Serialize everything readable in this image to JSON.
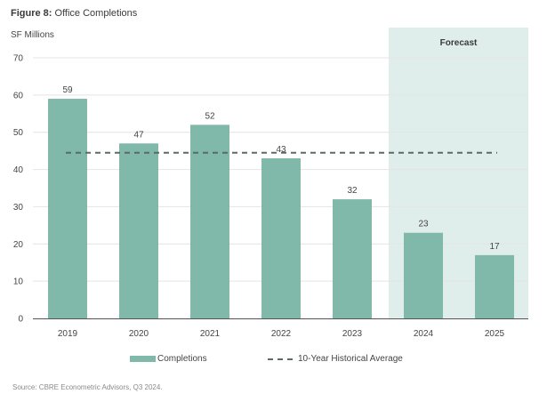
{
  "figure": {
    "label": "Figure 8:",
    "title": "Office Completions"
  },
  "source": "Source: CBRE Econometric Advisors, Q3 2024.",
  "chart_data": {
    "type": "bar",
    "y_unit_label": "SF Millions",
    "categories": [
      "2019",
      "2020",
      "2021",
      "2022",
      "2023",
      "2024",
      "2025"
    ],
    "series": [
      {
        "name": "Completions",
        "values": [
          59,
          47,
          52,
          43,
          32,
          23,
          17
        ]
      }
    ],
    "reference_line": {
      "name": "10-Year Historical Average",
      "value": 44.5,
      "style": "dashed"
    },
    "forecast_region": {
      "label": "Forecast",
      "categories": [
        "2024",
        "2025"
      ]
    },
    "ylim": [
      0,
      70
    ],
    "yticks": [
      0,
      10,
      20,
      30,
      40,
      50,
      60,
      70
    ],
    "grid": true,
    "legend_position": "bottom",
    "colors": {
      "bar": "#80b9a9",
      "forecast_shade": "#dfeeea",
      "avg_line": "#5a6b66",
      "grid": "#e4e4e4",
      "axis": "#555555"
    }
  }
}
